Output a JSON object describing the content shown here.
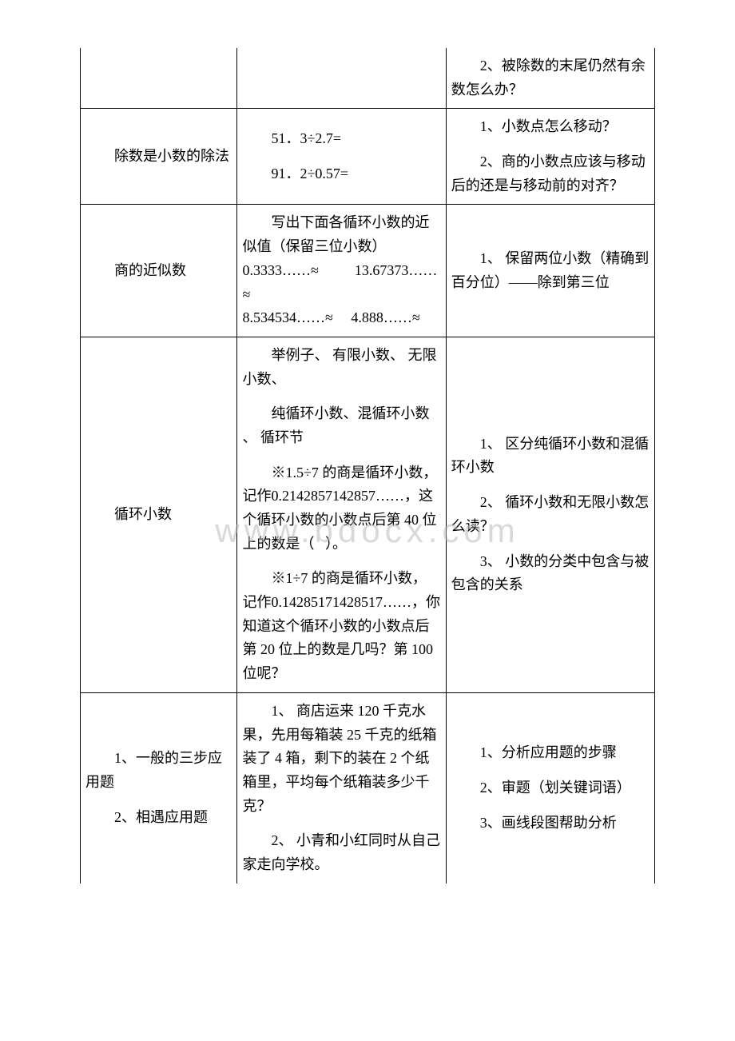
{
  "watermark": "www.bdocx.com",
  "table": {
    "rows": [
      {
        "col1_html": "",
        "col2_html": "",
        "col3_html": "<div class=\"indent para\">2、被除数的末尾仍然有余数怎么办？</div>",
        "col1_border_top": false,
        "col2_border_top": false,
        "col3_border_top": false
      },
      {
        "col1_html": "<div class=\"indent\">除数是小数的除法</div>",
        "col2_html": "<div class=\"indent para\">51．3÷2.7=</div><div class=\"indent para\">91．2÷0.57=</div>",
        "col3_html": "<div class=\"indent para\">1、小数点怎么移动？</div><div class=\"indent para\">2、商的小数点应该与移动后的还是与移动前的对齐？</div>"
      },
      {
        "col1_html": "<div class=\"indent\">商的近似数</div>",
        "col2_html": "<div class=\"indent\">写出下面各循环小数的近似值（保留三位小数）</div><div class=\"nowrap-block\">0.3333……≈&nbsp;&nbsp;&nbsp;&nbsp;&nbsp;&nbsp;&nbsp;&nbsp;&nbsp;&nbsp;13.67373……≈</div><div class=\"nowrap-block\">8.534534……≈&nbsp;&nbsp;&nbsp;&nbsp;&nbsp;4.888……≈</div>",
        "col3_html": "<div class=\"indent\">1、 保留两位小数（精确到百分位）——除到第三位</div>"
      },
      {
        "col1_html": "<div class=\"indent\">循环小数</div>",
        "col2_html": "<div class=\"indent para\">举例子、 有限小数、 无限小数、</div><div class=\"indent para\">纯循环小数、混循环小数 、 循环节</div><div class=\"indent para\">※1.5÷7 的商是循环小数，记作0.2142857142857……，这个循环小数的小数点后第 40 位上的数是（&nbsp;&nbsp;&nbsp;）。</div><div class=\"indent para\">※1÷7 的商是循环小数，记作0.14285171428517……，你知道这个循环小数的小数点后第 20 位上的数是几吗？第 100 位呢？</div>",
        "col3_html": "<div class=\"indent para\">1、 区分纯循环小数和混循环小数</div><div class=\"indent para\">2、 循环小数和无限小数怎么读？</div><div class=\"indent para\">3、 小数的分类中包含与被包含的关系</div>"
      },
      {
        "col1_html": "<div class=\"indent para\">1、一般的三步应用题</div><div class=\"indent para\">2、相遇应用题</div>",
        "col2_html": "<div class=\"indent para\">1、 商店运来 120 千克水果，先用每箱装 25 千克的纸箱装了 4 箱，剩下的装在 2 个纸箱里，平均每个纸箱装多少千克？</div><div class=\"indent\">2、 小青和小红同时从自己家走向学校。</div>",
        "col3_html": "<div class=\"indent para\">1、分析应用题的步骤</div><div class=\"indent para\">2、审题（划关键词语）</div><div class=\"indent para\">3、画线段图帮助分析</div>",
        "col1_border_bottom": false,
        "col2_border_bottom": false,
        "col3_border_bottom": false
      }
    ]
  }
}
